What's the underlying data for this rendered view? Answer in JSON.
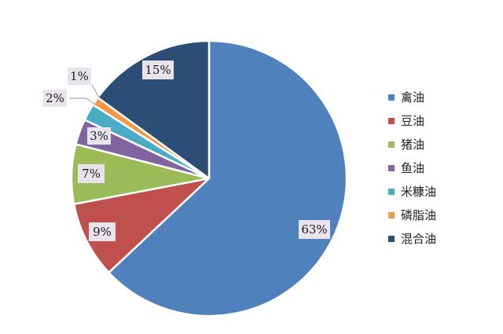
{
  "chart_data": {
    "type": "pie",
    "title": "",
    "start_angle_deg": 0,
    "direction": "clockwise",
    "legend_position": "right",
    "slices": [
      {
        "label": "禽油",
        "value": 63,
        "display": "63%",
        "color": "#4f81bd"
      },
      {
        "label": "豆油",
        "value": 9,
        "display": "9%",
        "color": "#c0504d"
      },
      {
        "label": "猪油",
        "value": 7,
        "display": "7%",
        "color": "#9bbb59"
      },
      {
        "label": "鱼油",
        "value": 3,
        "display": "3%",
        "color": "#8064a2"
      },
      {
        "label": "米糠油",
        "value": 2,
        "display": "2%",
        "color": "#4bacc6"
      },
      {
        "label": "磷脂油",
        "value": 1,
        "display": "1%",
        "color": "#f79646"
      },
      {
        "label": "混合油",
        "value": 15,
        "display": "15%",
        "color": "#2c4d75"
      }
    ]
  }
}
